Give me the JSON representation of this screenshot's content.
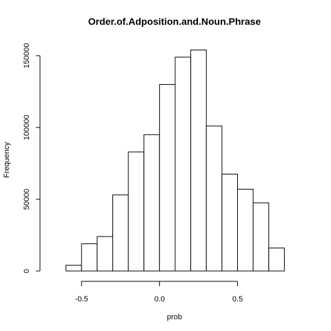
{
  "chart_data": {
    "type": "histogram",
    "title": "Order.of.Adposition.and.Noun.Phrase",
    "xlabel": "prob",
    "ylabel": "Frequency",
    "bins": [
      {
        "x0": -0.6,
        "x1": -0.5,
        "value": 4000
      },
      {
        "x0": -0.5,
        "x1": -0.4,
        "value": 19000
      },
      {
        "x0": -0.4,
        "x1": -0.3,
        "value": 24000
      },
      {
        "x0": -0.3,
        "x1": -0.2,
        "value": 53000
      },
      {
        "x0": -0.2,
        "x1": -0.1,
        "value": 83000
      },
      {
        "x0": -0.1,
        "x1": 0.0,
        "value": 95000
      },
      {
        "x0": 0.0,
        "x1": 0.1,
        "value": 130000
      },
      {
        "x0": 0.1,
        "x1": 0.2,
        "value": 149000
      },
      {
        "x0": 0.2,
        "x1": 0.3,
        "value": 154000
      },
      {
        "x0": 0.3,
        "x1": 0.4,
        "value": 101000
      },
      {
        "x0": 0.4,
        "x1": 0.5,
        "value": 67500
      },
      {
        "x0": 0.5,
        "x1": 0.6,
        "value": 57000
      },
      {
        "x0": 0.6,
        "x1": 0.7,
        "value": 47500
      },
      {
        "x0": 0.7,
        "x1": 0.8,
        "value": 16000
      }
    ],
    "xlim": [
      -0.7,
      0.9
    ],
    "ylim": [
      0,
      160000
    ],
    "x_ticks": [
      -0.5,
      0.0,
      0.5
    ],
    "x_tick_labels": [
      "-0.5",
      "0.0",
      "0.5"
    ],
    "y_ticks": [
      0,
      50000,
      100000,
      150000
    ],
    "y_tick_labels": [
      "0",
      "50000",
      "100000",
      "150000"
    ],
    "grid": false,
    "legend": "none",
    "colors": {
      "bar_fill": "#ffffff",
      "bar_stroke": "#000000",
      "axis": "#000000",
      "text": "#000000",
      "background": "#ffffff"
    }
  }
}
